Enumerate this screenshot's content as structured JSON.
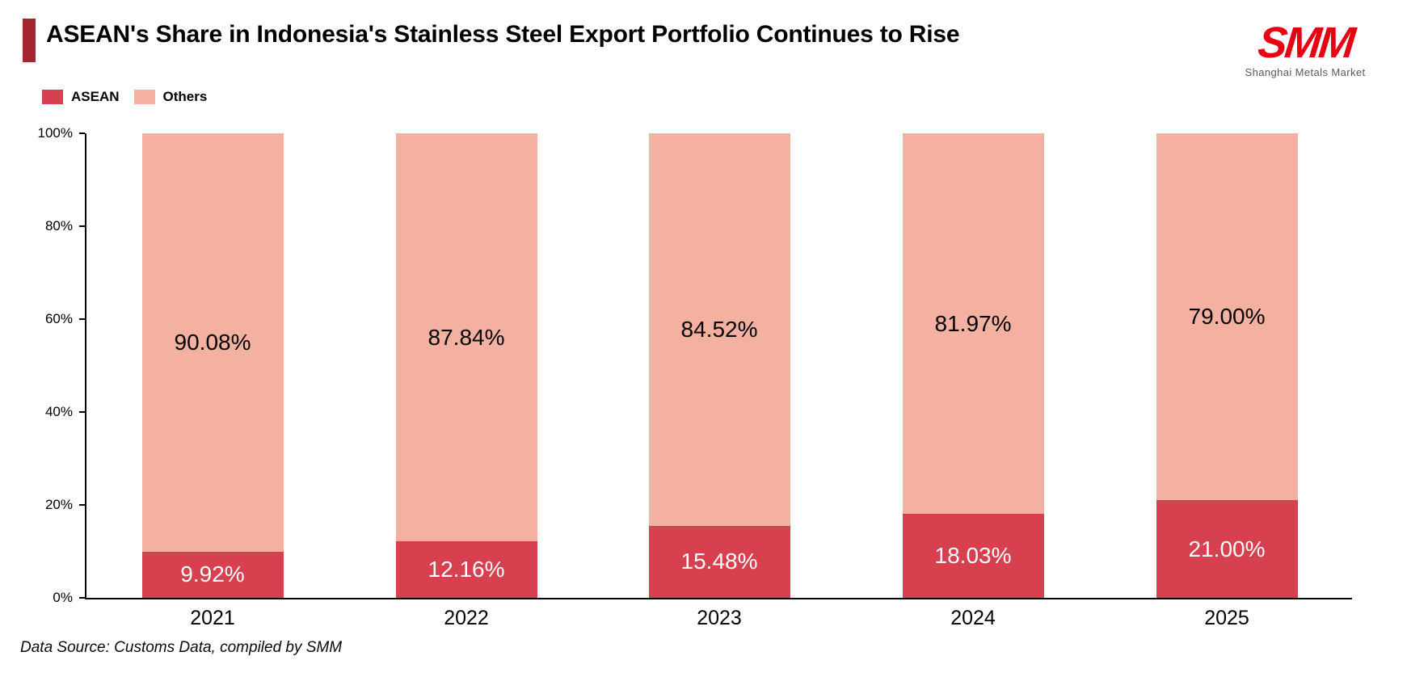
{
  "header": {
    "title": "ASEAN's Share in Indonesia's Stainless Steel Export Portfolio Continues to Rise",
    "accent_color": "#a52531",
    "logo": {
      "text": "SMM",
      "tagline": "Shanghai Metals Market",
      "color": "#e60012"
    }
  },
  "legend": {
    "items": [
      {
        "label": "ASEAN",
        "color": "#d6404f"
      },
      {
        "label": "Others",
        "color": "#f4b1a1"
      }
    ]
  },
  "chart_data": {
    "type": "bar",
    "stacked": true,
    "title": "ASEAN's Share in Indonesia's Stainless Steel Export Portfolio Continues to Rise",
    "categories": [
      "2021",
      "2022",
      "2023",
      "2024",
      "2025"
    ],
    "series": [
      {
        "name": "ASEAN",
        "color": "#d6404f",
        "label_color": "#ffffff",
        "values": [
          9.92,
          12.16,
          15.48,
          18.03,
          21.0
        ],
        "labels": [
          "9.92%",
          "12.16%",
          "15.48%",
          "18.03%",
          "21.00%"
        ]
      },
      {
        "name": "Others",
        "color": "#f4b1a1",
        "label_color": "#000000",
        "values": [
          90.08,
          87.84,
          84.52,
          81.97,
          79.0
        ],
        "labels": [
          "90.08%",
          "87.84%",
          "84.52%",
          "81.97%",
          "79.00%"
        ]
      }
    ],
    "xlabel": "",
    "ylabel": "",
    "ylim": [
      0,
      100
    ],
    "ytick_values": [
      0,
      20,
      40,
      60,
      80,
      100
    ],
    "ytick_labels": [
      "0%",
      "20%",
      "40%",
      "60%",
      "80%",
      "100%"
    ],
    "grid": false,
    "legend_position": "top-left"
  },
  "footer": {
    "source_note": "Data Source: Customs Data, compiled by SMM"
  }
}
